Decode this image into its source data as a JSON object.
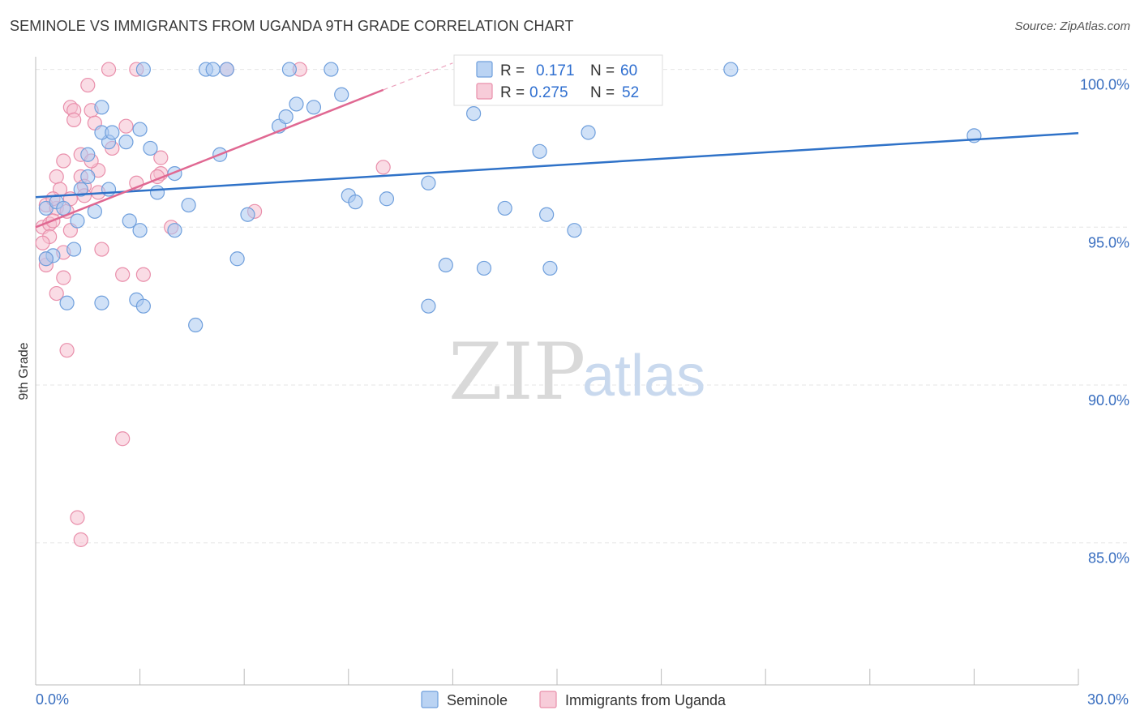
{
  "title": "SEMINOLE VS IMMIGRANTS FROM UGANDA 9TH GRADE CORRELATION CHART",
  "source": "Source: ZipAtlas.com",
  "colors": {
    "seminole_fill": "#a9c8f0",
    "seminole_stroke": "#6f9fdc",
    "seminole_line": "#2f72c8",
    "uganda_fill": "#f5bfd0",
    "uganda_stroke": "#e98fab",
    "uganda_line": "#e06892",
    "axis_label": "#3a6fc0",
    "grid": "#e5e5e5"
  },
  "legend": {
    "rows": [
      {
        "r_label": "R =",
        "r_value": "0.171",
        "n_label": "N =",
        "n_value": "60"
      },
      {
        "r_label": "R =",
        "r_value": "0.275",
        "n_label": "N =",
        "n_value": "52"
      }
    ]
  },
  "watermark": {
    "zip": "ZIP",
    "atlas": "atlas"
  },
  "chart_data": {
    "type": "scatter",
    "title": "SEMINOLE VS IMMIGRANTS FROM UGANDA 9TH GRADE CORRELATION CHART",
    "xlabel": "",
    "ylabel": "9th Grade",
    "xlim": [
      0,
      30
    ],
    "ylim": [
      80.5,
      100.4
    ],
    "x_tick_labels": [
      "0.0%",
      "30.0%"
    ],
    "y_ticks": [
      100,
      95,
      90,
      85
    ],
    "y_tick_labels": [
      "100.0%",
      "95.0%",
      "90.0%",
      "85.0%"
    ],
    "grid": true,
    "series": [
      {
        "name": "Seminole",
        "r": 0.171,
        "n": 60,
        "trend": {
          "x0": 0,
          "y0": 95.95,
          "x1": 30,
          "y1": 97.98
        },
        "points": [
          [
            3.1,
            100
          ],
          [
            4.9,
            100
          ],
          [
            5.1,
            100
          ],
          [
            5.5,
            100
          ],
          [
            7.3,
            100
          ],
          [
            8.5,
            100
          ],
          [
            20.0,
            100
          ],
          [
            1.9,
            98.8
          ],
          [
            8.8,
            99.2
          ],
          [
            7.5,
            98.9
          ],
          [
            7.0,
            98.2
          ],
          [
            8.0,
            98.8
          ],
          [
            7.2,
            98.5
          ],
          [
            3.0,
            98.1
          ],
          [
            2.6,
            97.7
          ],
          [
            2.1,
            97.7
          ],
          [
            1.9,
            98.0
          ],
          [
            3.3,
            97.5
          ],
          [
            2.2,
            98.0
          ],
          [
            5.3,
            97.3
          ],
          [
            1.5,
            97.3
          ],
          [
            4.0,
            96.7
          ],
          [
            1.5,
            96.6
          ],
          [
            1.3,
            96.2
          ],
          [
            2.1,
            96.2
          ],
          [
            3.5,
            96.1
          ],
          [
            9.0,
            96.0
          ],
          [
            10.1,
            95.9
          ],
          [
            11.3,
            96.4
          ],
          [
            0.3,
            95.6
          ],
          [
            0.6,
            95.8
          ],
          [
            0.8,
            95.6
          ],
          [
            1.7,
            95.5
          ],
          [
            4.4,
            95.7
          ],
          [
            9.2,
            95.8
          ],
          [
            13.5,
            95.6
          ],
          [
            14.7,
            95.4
          ],
          [
            6.1,
            95.4
          ],
          [
            1.2,
            95.2
          ],
          [
            2.7,
            95.2
          ],
          [
            3.0,
            94.9
          ],
          [
            4.0,
            94.9
          ],
          [
            15.5,
            94.9
          ],
          [
            27.0,
            97.9
          ],
          [
            0.5,
            94.1
          ],
          [
            1.1,
            94.3
          ],
          [
            5.8,
            94.0
          ],
          [
            11.8,
            93.8
          ],
          [
            12.9,
            93.7
          ],
          [
            14.8,
            93.7
          ],
          [
            0.9,
            92.6
          ],
          [
            1.9,
            92.6
          ],
          [
            2.9,
            92.7
          ],
          [
            3.1,
            92.5
          ],
          [
            11.3,
            92.5
          ],
          [
            4.6,
            91.9
          ],
          [
            12.6,
            98.6
          ],
          [
            15.9,
            98.0
          ],
          [
            14.5,
            97.4
          ],
          [
            0.3,
            94.0
          ]
        ]
      },
      {
        "name": "Immigrants from Uganda",
        "r": 0.275,
        "n": 52,
        "trend": {
          "x0": 0,
          "y0": 95.0,
          "x1": 10.0,
          "y1": 99.35
        },
        "trend_dashed_to": {
          "x": 12.0,
          "y": 100.2
        },
        "points": [
          [
            2.1,
            100
          ],
          [
            2.9,
            100
          ],
          [
            5.5,
            100
          ],
          [
            7.6,
            100
          ],
          [
            1.5,
            99.5
          ],
          [
            1.0,
            98.8
          ],
          [
            1.6,
            98.7
          ],
          [
            1.1,
            98.7
          ],
          [
            1.1,
            98.4
          ],
          [
            1.7,
            98.3
          ],
          [
            2.6,
            98.2
          ],
          [
            1.3,
            97.3
          ],
          [
            3.6,
            97.2
          ],
          [
            0.8,
            97.1
          ],
          [
            10.0,
            96.9
          ],
          [
            1.8,
            96.8
          ],
          [
            0.6,
            96.6
          ],
          [
            1.3,
            96.6
          ],
          [
            3.6,
            96.7
          ],
          [
            1.4,
            96.3
          ],
          [
            2.9,
            96.4
          ],
          [
            0.7,
            96.2
          ],
          [
            1.4,
            96.0
          ],
          [
            1.8,
            96.1
          ],
          [
            0.3,
            95.7
          ],
          [
            0.6,
            95.6
          ],
          [
            6.3,
            95.5
          ],
          [
            0.9,
            95.5
          ],
          [
            0.2,
            95.0
          ],
          [
            0.4,
            95.1
          ],
          [
            0.5,
            95.2
          ],
          [
            1.0,
            94.9
          ],
          [
            3.9,
            95.0
          ],
          [
            0.4,
            94.7
          ],
          [
            0.2,
            94.5
          ],
          [
            0.8,
            94.2
          ],
          [
            1.9,
            94.3
          ],
          [
            0.3,
            93.8
          ],
          [
            2.5,
            93.5
          ],
          [
            3.1,
            93.5
          ],
          [
            0.8,
            93.4
          ],
          [
            0.6,
            92.9
          ],
          [
            0.9,
            91.1
          ],
          [
            2.5,
            88.3
          ],
          [
            1.2,
            85.8
          ],
          [
            1.3,
            85.1
          ],
          [
            0.3,
            94.0
          ],
          [
            1.6,
            97.1
          ],
          [
            0.5,
            95.9
          ],
          [
            3.5,
            96.6
          ],
          [
            2.2,
            97.5
          ],
          [
            1.0,
            95.9
          ]
        ]
      }
    ]
  }
}
